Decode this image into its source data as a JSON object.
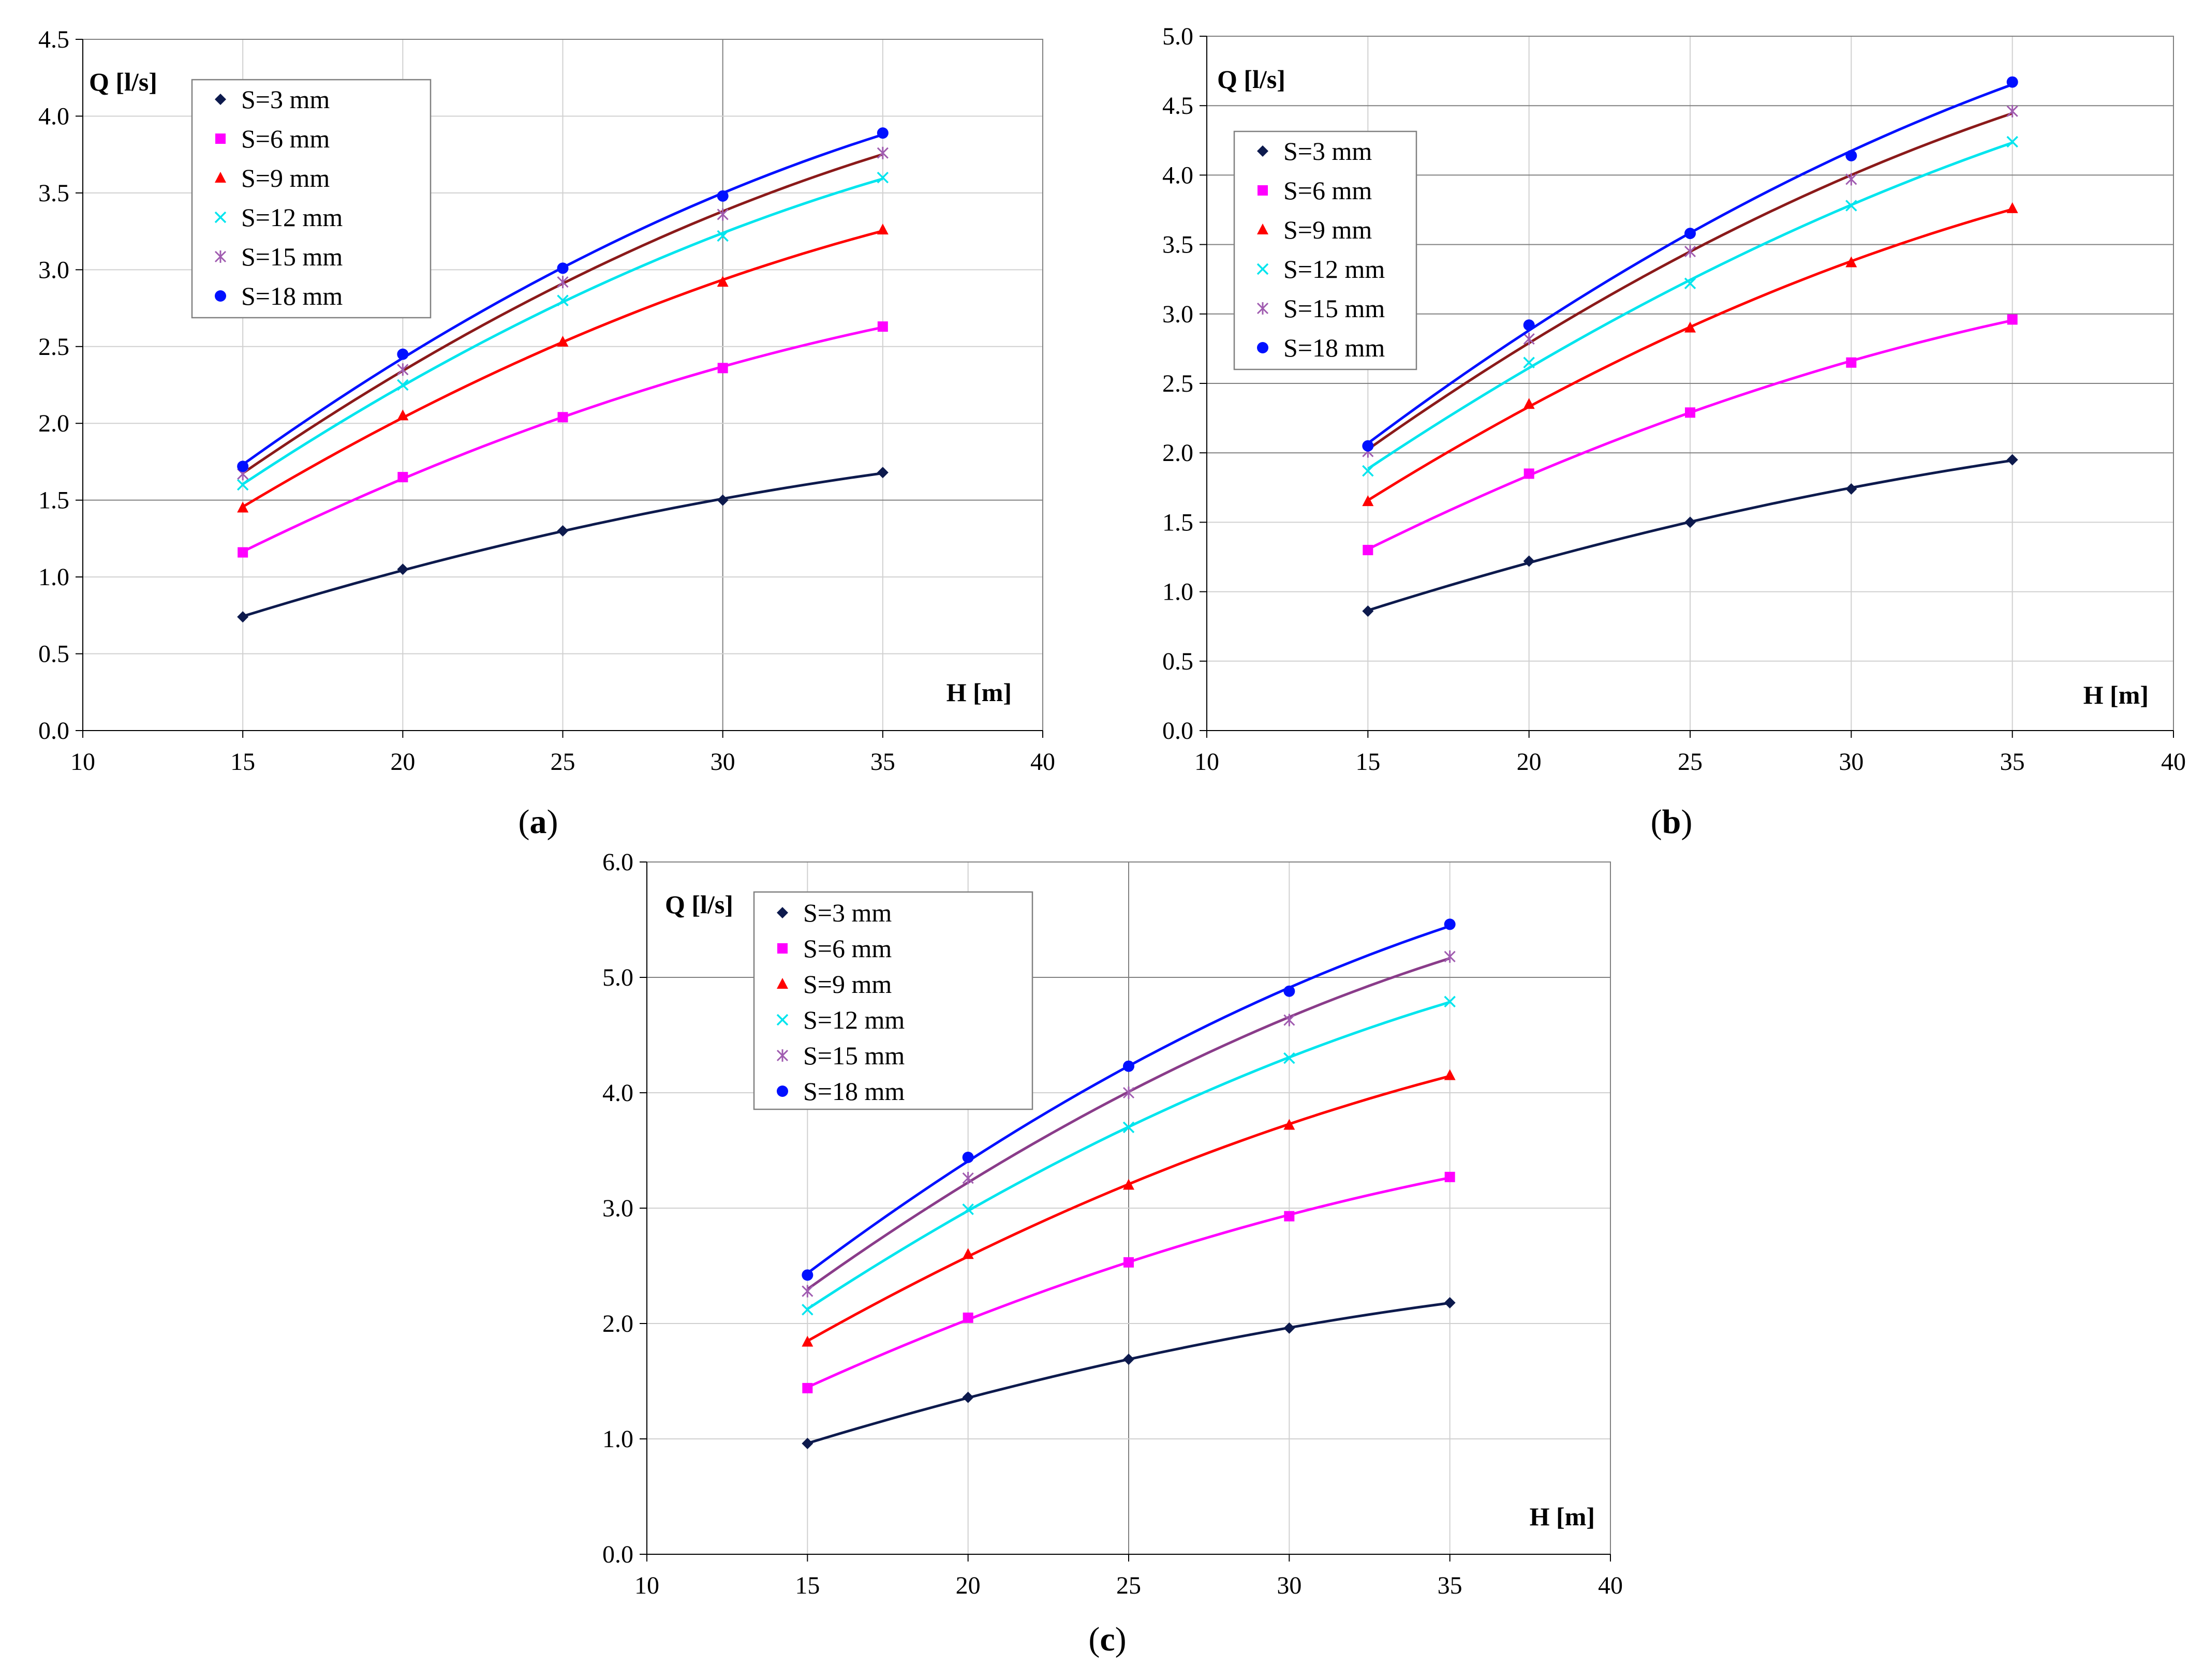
{
  "colors": {
    "S=3 mm": "#0d1a4d",
    "S=6 mm": "#ff00ff",
    "S=9 mm": "#ff0000",
    "S=12 mm": "#00e5ee",
    "S=15 mm": "#a05cb0",
    "S=18 mm": "#0010ff",
    "trend_15mm_a_b": "#8b1a1a",
    "trend_15mm_c": "#8a3c8a",
    "grid_major": "#808080",
    "grid_minor": "#d0d0d0"
  },
  "chart_data": [
    {
      "type": "line",
      "caption": "a",
      "xlabel": "H [m]",
      "ylabel": "Q [l/s]",
      "xlim": [
        10,
        40
      ],
      "ylim": [
        0,
        4.5
      ],
      "xticks": [
        "10",
        "15",
        "20",
        "25",
        "30",
        "35",
        "40"
      ],
      "yticks": [
        "0.0",
        "0.5",
        "1.0",
        "1.5",
        "2.0",
        "2.5",
        "3.0",
        "3.5",
        "4.0",
        "4.5"
      ],
      "x": [
        15,
        20,
        25,
        30,
        35
      ],
      "legend_position": "top-left",
      "series": [
        {
          "name": "S=3 mm",
          "marker": "diamond",
          "values": [
            0.74,
            1.05,
            1.3,
            1.5,
            1.68
          ]
        },
        {
          "name": "S=6 mm",
          "marker": "square",
          "values": [
            1.16,
            1.65,
            2.04,
            2.36,
            2.63
          ]
        },
        {
          "name": "S=9 mm",
          "marker": "triangle",
          "values": [
            1.45,
            2.05,
            2.53,
            2.92,
            3.26
          ]
        },
        {
          "name": "S=12 mm",
          "marker": "x",
          "values": [
            1.6,
            2.25,
            2.8,
            3.22,
            3.6
          ]
        },
        {
          "name": "S=15 mm",
          "marker": "star",
          "values": [
            1.67,
            2.35,
            2.92,
            3.36,
            3.76
          ]
        },
        {
          "name": "S=18 mm",
          "marker": "circle",
          "values": [
            1.72,
            2.45,
            3.01,
            3.48,
            3.89
          ]
        }
      ]
    },
    {
      "type": "line",
      "caption": "b",
      "xlabel": "H [m]",
      "ylabel": "Q [l/s]",
      "xlim": [
        10,
        40
      ],
      "ylim": [
        0,
        5.0
      ],
      "xticks": [
        "10",
        "15",
        "20",
        "25",
        "30",
        "35",
        "40"
      ],
      "yticks": [
        "0.0",
        "0.5",
        "1.0",
        "1.5",
        "2.0",
        "2.5",
        "3.0",
        "3.5",
        "4.0",
        "4.5",
        "5.0"
      ],
      "x": [
        15,
        20,
        25,
        30,
        35
      ],
      "legend_position": "top-left",
      "series": [
        {
          "name": "S=3 mm",
          "marker": "diamond",
          "values": [
            0.86,
            1.22,
            1.5,
            1.74,
            1.95
          ]
        },
        {
          "name": "S=6 mm",
          "marker": "square",
          "values": [
            1.3,
            1.85,
            2.29,
            2.65,
            2.96
          ]
        },
        {
          "name": "S=9 mm",
          "marker": "triangle",
          "values": [
            1.65,
            2.35,
            2.9,
            3.37,
            3.76
          ]
        },
        {
          "name": "S=12 mm",
          "marker": "x",
          "values": [
            1.87,
            2.65,
            3.22,
            3.78,
            4.24
          ]
        },
        {
          "name": "S=15 mm",
          "marker": "star",
          "values": [
            2.01,
            2.82,
            3.45,
            3.97,
            4.46
          ]
        },
        {
          "name": "S=18 mm",
          "marker": "circle",
          "values": [
            2.05,
            2.92,
            3.58,
            4.14,
            4.67
          ]
        }
      ]
    },
    {
      "type": "line",
      "caption": "c",
      "xlabel": "H [m]",
      "ylabel": "Q [l/s]",
      "xlim": [
        10,
        40
      ],
      "ylim": [
        0,
        6.0
      ],
      "xticks": [
        "10",
        "15",
        "20",
        "25",
        "30",
        "35",
        "40"
      ],
      "yticks": [
        "0.0",
        "1.0",
        "2.0",
        "3.0",
        "4.0",
        "5.0",
        "6.0"
      ],
      "x": [
        15,
        20,
        25,
        30,
        35
      ],
      "legend_position": "top-left",
      "series": [
        {
          "name": "S=3 mm",
          "marker": "diamond",
          "values": [
            0.96,
            1.36,
            1.69,
            1.96,
            2.18
          ]
        },
        {
          "name": "S=6 mm",
          "marker": "square",
          "values": [
            1.44,
            2.05,
            2.53,
            2.93,
            3.27
          ]
        },
        {
          "name": "S=9 mm",
          "marker": "triangle",
          "values": [
            1.84,
            2.6,
            3.2,
            3.72,
            4.15
          ]
        },
        {
          "name": "S=12 mm",
          "marker": "x",
          "values": [
            2.12,
            2.99,
            3.7,
            4.3,
            4.79
          ]
        },
        {
          "name": "S=15 mm",
          "marker": "star",
          "values": [
            2.28,
            3.26,
            4.0,
            4.63,
            5.18
          ]
        },
        {
          "name": "S=18 mm",
          "marker": "circle",
          "values": [
            2.42,
            3.44,
            4.23,
            4.88,
            5.46
          ]
        }
      ]
    }
  ]
}
